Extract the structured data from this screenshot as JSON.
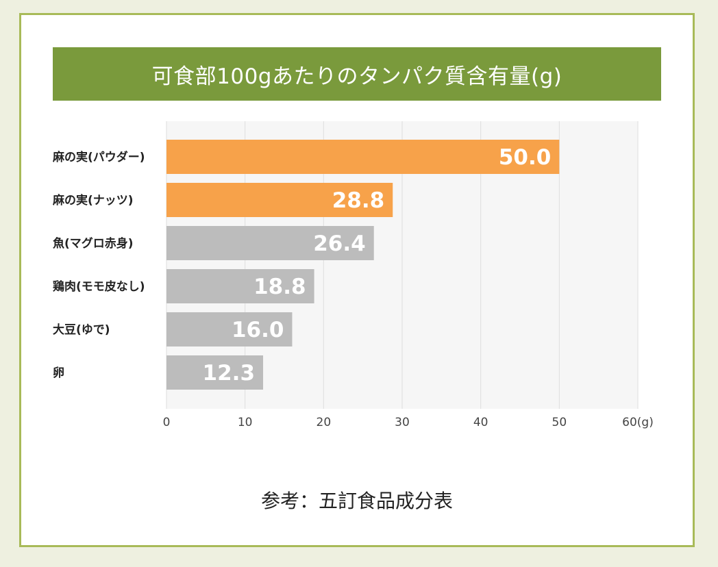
{
  "chart_data": {
    "type": "bar",
    "orientation": "horizontal",
    "title": "可食部100gあたりのタンパク質含有量(g)",
    "categories": [
      "麻の実(パウダー)",
      "麻の実(ナッツ)",
      "魚(マグロ赤身)",
      "鶏肉(モモ皮なし)",
      "大豆(ゆで)",
      "卵"
    ],
    "values": [
      50.0,
      28.8,
      26.4,
      18.8,
      16.0,
      12.3
    ],
    "data_labels": [
      "50.0",
      "28.8",
      "26.4",
      "18.8",
      "16.0",
      "12.3"
    ],
    "xlim": [
      0,
      60
    ],
    "x_ticks": [
      0,
      10,
      20,
      30,
      40,
      50,
      60
    ],
    "x_tick_labels": [
      "0",
      "10",
      "20",
      "30",
      "40",
      "50",
      "60(g)"
    ],
    "grid": true,
    "legend": "none",
    "highlight_categories": [
      "麻の実(パウダー)",
      "麻の実(ナッツ)"
    ]
  },
  "colors": {
    "highlight": "#f7a24a",
    "normal": "#bcbcbc",
    "title_bg": "#7a9a3c",
    "border": "#a8ba58",
    "page_bg": "#eef0e0",
    "plot_bg": "#f6f6f6"
  },
  "source_note": "参考：五訂食品成分表"
}
